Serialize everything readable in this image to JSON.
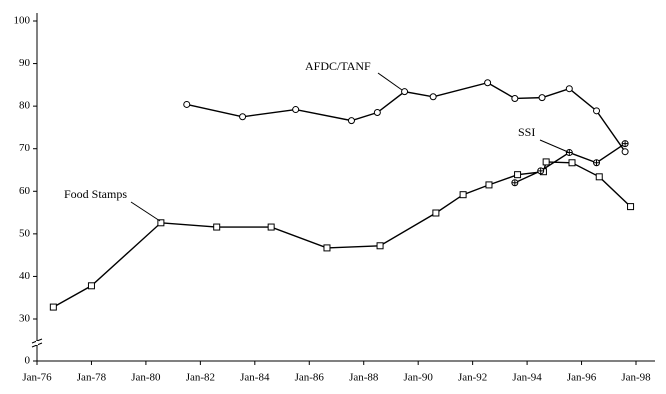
{
  "chart_data": {
    "type": "line",
    "xticks": [
      {
        "value": 1976,
        "label": "Jan-76"
      },
      {
        "value": 1978,
        "label": "Jan-78"
      },
      {
        "value": 1980,
        "label": "Jan-80"
      },
      {
        "value": 1982,
        "label": "Jan-82"
      },
      {
        "value": 1984,
        "label": "Jan-84"
      },
      {
        "value": 1986,
        "label": "Jan-86"
      },
      {
        "value": 1988,
        "label": "Jan-88"
      },
      {
        "value": 1990,
        "label": "Jan-90"
      },
      {
        "value": 1992,
        "label": "Jan-92"
      },
      {
        "value": 1994,
        "label": "Jan-94"
      },
      {
        "value": 1996,
        "label": "Jan-96"
      },
      {
        "value": 1998,
        "label": "Jan-98"
      }
    ],
    "xlim": [
      1976,
      1998
    ],
    "ylim": [
      0,
      100
    ],
    "yticks": [
      0,
      30,
      40,
      50,
      60,
      70,
      80,
      90,
      100
    ],
    "y_axis_break": [
      0,
      30
    ],
    "series": [
      {
        "name": "Food Stamps",
        "color": "#000000",
        "marker": "square",
        "x": [
          1976.6,
          1978.0,
          1980.55,
          1982.6,
          1984.6,
          1986.65,
          1988.6,
          1990.65,
          1991.65,
          1992.6,
          1993.65,
          1994.6,
          1994.7,
          1995.65,
          1996.65,
          1997.8
        ],
        "values": [
          32.8,
          37.8,
          52.6,
          51.6,
          51.6,
          46.7,
          47.2,
          54.9,
          59.2,
          61.5,
          63.9,
          64.6,
          66.9,
          66.7,
          63.4,
          56.4
        ]
      },
      {
        "name": "AFDC/TANF",
        "color": "#000000",
        "marker": "circle",
        "x": [
          1981.5,
          1983.55,
          1985.5,
          1987.55,
          1988.5,
          1989.5,
          1990.55,
          1992.55,
          1993.55,
          1994.55,
          1995.55,
          1996.55,
          1997.6
        ],
        "values": [
          80.4,
          77.5,
          79.2,
          76.6,
          78.5,
          83.4,
          82.2,
          85.5,
          81.8,
          82.0,
          84.1,
          78.9,
          69.3
        ]
      },
      {
        "name": "SSI",
        "color": "#000000",
        "marker": "crossed-circle",
        "x": [
          1993.55,
          1994.5,
          1995.55,
          1996.55,
          1997.6
        ],
        "values": [
          62.0,
          64.8,
          69.1,
          66.7,
          71.2
        ]
      }
    ]
  }
}
